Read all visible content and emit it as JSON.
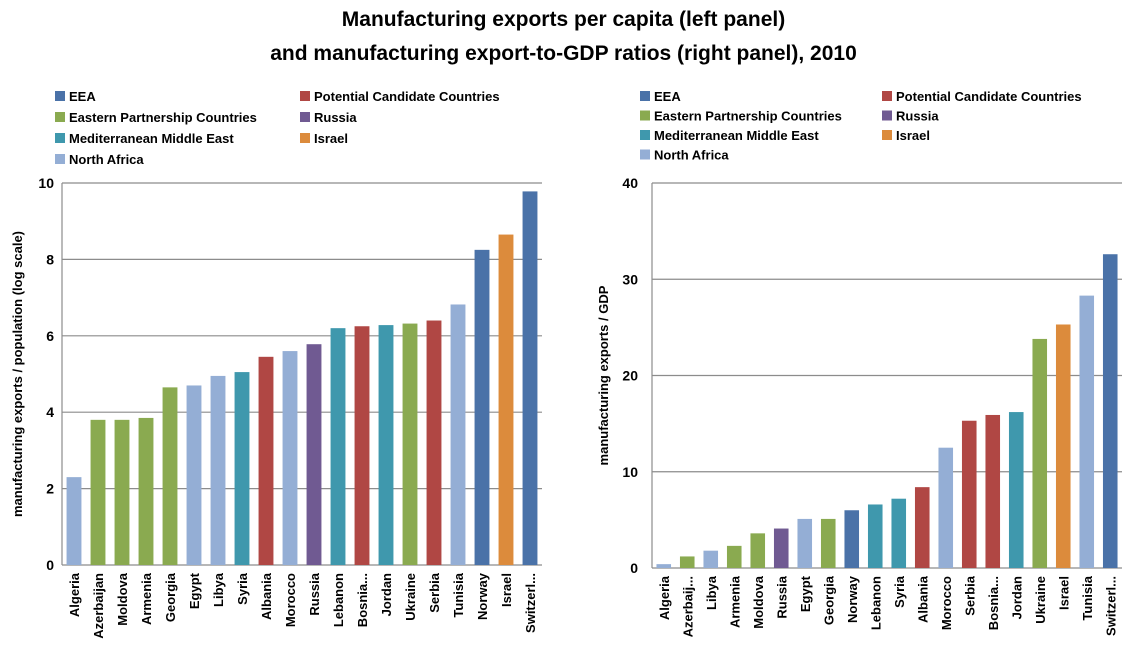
{
  "title_line1": "Manufacturing exports per capita (left panel)",
  "title_line2": "and manufacturing export-to-GDP ratios (right panel), 2010",
  "colors": {
    "EEA": "#4a72a8",
    "Potential Candidate Countries": "#b04744",
    "Eastern Partnership Countries": "#8aaa50",
    "Russia": "#705a92",
    "Mediterranean Middle East": "#3f98ad",
    "Israel": "#dc8b3c",
    "North Africa": "#94aed5"
  },
  "chart_data": [
    {
      "type": "bar",
      "ylabel": "manufacturing exports / population (log scale)",
      "ylim": [
        0,
        10
      ],
      "yticks": [
        0,
        2,
        4,
        6,
        8,
        10
      ],
      "grid": true,
      "legend": {
        "placement": "top",
        "columns": [
          [
            "EEA",
            "Eastern Partnership Countries",
            "Mediterranean Middle East",
            "North Africa"
          ],
          [
            "Potential Candidate Countries",
            "Russia",
            "Israel"
          ]
        ]
      },
      "categories": [
        "Algeria",
        "Azerbaijan",
        "Moldova",
        "Armenia",
        "Georgia",
        "Egypt",
        "Libya",
        "Syria",
        "Albania",
        "Morocco",
        "Russia",
        "Lebanon",
        "Bosnia...",
        "Jordan",
        "Ukraine",
        "Serbia",
        "Tunisia",
        "Norway",
        "Israel",
        "Switzerl..."
      ],
      "values": [
        2.3,
        3.8,
        3.8,
        3.85,
        4.65,
        4.7,
        4.95,
        5.05,
        5.45,
        5.6,
        5.78,
        6.2,
        6.25,
        6.28,
        6.32,
        6.4,
        6.82,
        8.25,
        8.65,
        9.78
      ],
      "groups": [
        "North Africa",
        "Eastern Partnership Countries",
        "Eastern Partnership Countries",
        "Eastern Partnership Countries",
        "Eastern Partnership Countries",
        "North Africa",
        "North Africa",
        "Mediterranean Middle East",
        "Potential Candidate Countries",
        "North Africa",
        "Russia",
        "Mediterranean Middle East",
        "Potential Candidate Countries",
        "Mediterranean Middle East",
        "Eastern Partnership Countries",
        "Potential Candidate Countries",
        "North Africa",
        "EEA",
        "Israel",
        "EEA"
      ]
    },
    {
      "type": "bar",
      "ylabel": "manufacturing exports / GDP",
      "ylim": [
        0,
        40
      ],
      "yticks": [
        0,
        10,
        20,
        30,
        40
      ],
      "grid": true,
      "legend": {
        "placement": "top",
        "columns": [
          [
            "EEA",
            "Eastern Partnership Countries",
            "Mediterranean Middle East",
            "North Africa"
          ],
          [
            "Potential Candidate Countries",
            "Russia",
            "Israel"
          ]
        ]
      },
      "categories": [
        "Algeria",
        "Azerbaij...",
        "Libya",
        "Armenia",
        "Moldova",
        "Russia",
        "Egypt",
        "Georgia",
        "Norway",
        "Lebanon",
        "Syria",
        "Albania",
        "Morocco",
        "Serbia",
        "Bosnia...",
        "Jordan",
        "Ukraine",
        "Israel",
        "Tunisia",
        "Switzerl..."
      ],
      "values": [
        0.4,
        1.2,
        1.8,
        2.3,
        3.6,
        4.1,
        5.1,
        5.1,
        6.0,
        6.6,
        7.2,
        8.4,
        12.5,
        15.3,
        15.9,
        16.2,
        23.8,
        25.3,
        28.3,
        32.6
      ],
      "groups": [
        "North Africa",
        "Eastern Partnership Countries",
        "North Africa",
        "Eastern Partnership Countries",
        "Eastern Partnership Countries",
        "Russia",
        "North Africa",
        "Eastern Partnership Countries",
        "EEA",
        "Mediterranean Middle East",
        "Mediterranean Middle East",
        "Potential Candidate Countries",
        "North Africa",
        "Potential Candidate Countries",
        "Potential Candidate Countries",
        "Mediterranean Middle East",
        "Eastern Partnership Countries",
        "Israel",
        "North Africa",
        "EEA"
      ]
    }
  ]
}
